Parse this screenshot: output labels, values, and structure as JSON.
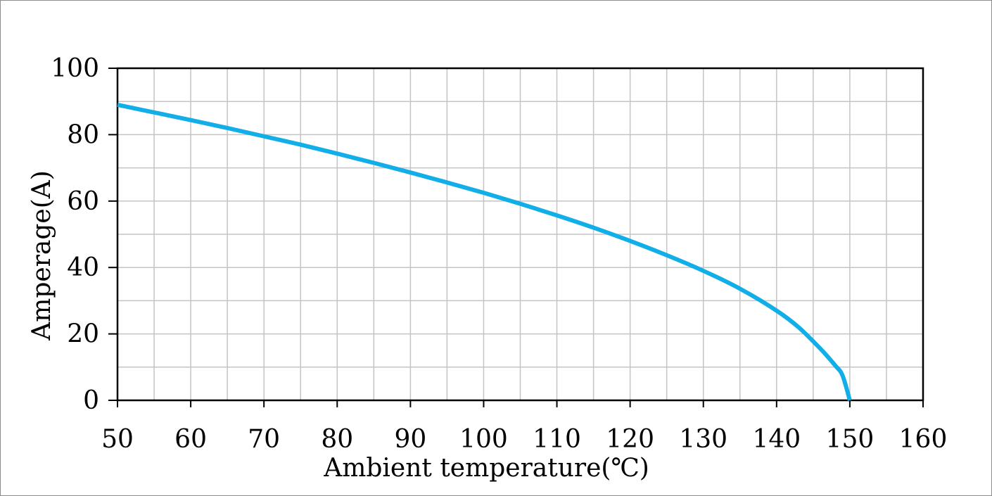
{
  "chart_data": {
    "type": "line",
    "title": "",
    "xlabel": "Ambient temperature(℃)",
    "ylabel": "Amperage(A)",
    "xlim": [
      50,
      160
    ],
    "ylim": [
      0,
      100
    ],
    "x_ticks": [
      "50",
      "60",
      "70",
      "80",
      "90",
      "100",
      "110",
      "120",
      "130",
      "140",
      "150",
      "160"
    ],
    "y_ticks": [
      "0",
      "20",
      "40",
      "60",
      "80",
      "100"
    ],
    "x_minor_step": 5,
    "y_minor_step": 10,
    "grid": true,
    "legend": "none",
    "series": [
      {
        "color": "#12aee8",
        "x": [
          50,
          55,
          60,
          65,
          70,
          75,
          80,
          85,
          90,
          95,
          100,
          105,
          110,
          115,
          120,
          125,
          130,
          135,
          140,
          143,
          146,
          148,
          149,
          150
        ],
        "y": [
          89,
          86.7,
          84.4,
          82,
          79.5,
          77,
          74.3,
          71.5,
          68.6,
          65.6,
          62.5,
          59.2,
          55.7,
          52,
          48,
          43.7,
          39,
          33.6,
          27,
          22,
          15.5,
          10.5,
          7.5,
          0
        ]
      }
    ]
  }
}
